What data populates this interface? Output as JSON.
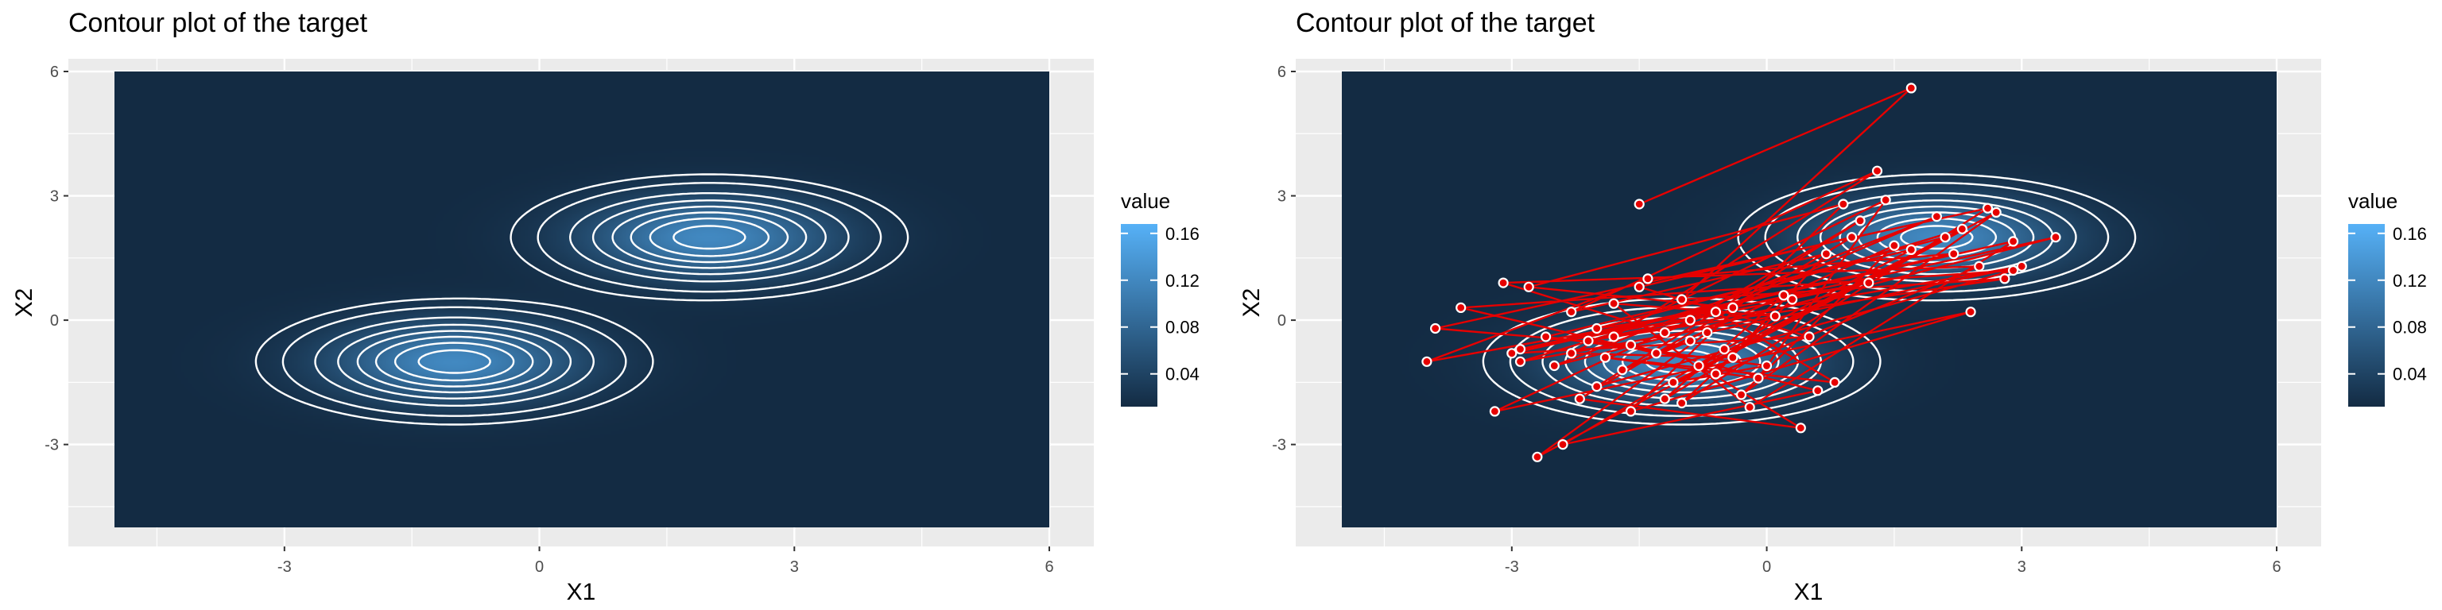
{
  "chart_data": [
    {
      "type": "heatmap",
      "title": "Contour plot of the target",
      "xlabel": "X1",
      "ylabel": "X2",
      "xlim": [
        -5,
        6
      ],
      "ylim": [
        -5,
        6
      ],
      "xticks": [
        "-3",
        "0",
        "3",
        "6"
      ],
      "yticks": [
        "-3",
        "0",
        "3",
        "6"
      ],
      "xtick_values": [
        -3,
        0,
        3,
        6
      ],
      "ytick_values": [
        -3,
        0,
        3,
        6
      ],
      "legend": {
        "title": "value",
        "labels": [
          "0.16",
          "0.12",
          "0.08",
          "0.04"
        ],
        "values": [
          0.16,
          0.12,
          0.08,
          0.04
        ],
        "placement": "right"
      },
      "density": {
        "components": [
          {
            "weight": 0.5,
            "mean": [
              -1,
              -1
            ],
            "sd": [
              1.0,
              0.65
            ]
          },
          {
            "weight": 0.5,
            "mean": [
              2,
              2
            ],
            "sd": [
              1.0,
              0.65
            ]
          }
        ]
      },
      "contour_levels": [
        0.008,
        0.016,
        0.032,
        0.048,
        0.064,
        0.08,
        0.096,
        0.112,
        0.128,
        0.144,
        0.16,
        0.174
      ],
      "colors": {
        "low": "#132b43",
        "high": "#56b1f7",
        "contour": "#ffffff",
        "panel": "#ebebeb",
        "grid": "#ffffff"
      }
    },
    {
      "type": "heatmap",
      "title": "Contour plot of the target",
      "xlabel": "X1",
      "ylabel": "X2",
      "xlim": [
        -5,
        6
      ],
      "ylim": [
        -5,
        6
      ],
      "xticks": [
        "-3",
        "0",
        "3",
        "6"
      ],
      "yticks": [
        "-3",
        "0",
        "3",
        "6"
      ],
      "xtick_values": [
        -3,
        0,
        3,
        6
      ],
      "ytick_values": [
        -3,
        0,
        3,
        6
      ],
      "legend": {
        "title": "value",
        "labels": [
          "0.16",
          "0.12",
          "0.08",
          "0.04"
        ],
        "values": [
          0.16,
          0.12,
          0.08,
          0.04
        ],
        "placement": "right"
      },
      "density": {
        "components": [
          {
            "weight": 0.5,
            "mean": [
              -1,
              -1
            ],
            "sd": [
              1.0,
              0.65
            ]
          },
          {
            "weight": 0.5,
            "mean": [
              2,
              2
            ],
            "sd": [
              1.0,
              0.65
            ]
          }
        ]
      },
      "contour_levels": [
        0.008,
        0.016,
        0.032,
        0.048,
        0.064,
        0.08,
        0.096,
        0.112,
        0.128,
        0.144,
        0.16,
        0.174
      ],
      "colors": {
        "low": "#132b43",
        "high": "#56b1f7",
        "contour": "#ffffff",
        "panel": "#ebebeb",
        "grid": "#ffffff",
        "path": "#e60000",
        "point_fill": "#e60000",
        "point_stroke": "#ffffff"
      },
      "path": [
        [
          -1.5,
          2.8
        ],
        [
          1.7,
          5.6
        ],
        [
          -1.0,
          0.5
        ],
        [
          2.8,
          1.0
        ],
        [
          -1.8,
          -0.4
        ],
        [
          1.3,
          3.6
        ],
        [
          -2.3,
          0.2
        ],
        [
          0.7,
          1.6
        ],
        [
          -0.6,
          -1.3
        ],
        [
          2.5,
          1.3
        ],
        [
          -3.1,
          0.9
        ],
        [
          -1.2,
          -0.3
        ],
        [
          2.0,
          2.5
        ],
        [
          -2.5,
          -1.1
        ],
        [
          3.4,
          2.0
        ],
        [
          -0.4,
          0.3
        ],
        [
          -2.8,
          0.8
        ],
        [
          0.9,
          2.8
        ],
        [
          -1.6,
          -2.2
        ],
        [
          2.4,
          0.2
        ],
        [
          -3.2,
          -2.2
        ],
        [
          -0.9,
          0.0
        ],
        [
          1.1,
          2.4
        ],
        [
          -2.0,
          -1.6
        ],
        [
          2.9,
          1.2
        ],
        [
          -3.6,
          0.3
        ],
        [
          -1.3,
          -0.8
        ],
        [
          1.5,
          1.8
        ],
        [
          -0.3,
          -1.8
        ],
        [
          2.7,
          2.6
        ],
        [
          -2.7,
          -3.3
        ],
        [
          -0.7,
          -0.3
        ],
        [
          3.0,
          1.3
        ],
        [
          -2.1,
          -0.5
        ],
        [
          1.2,
          0.9
        ],
        [
          -4.0,
          -1.0
        ],
        [
          -1.4,
          1.0
        ],
        [
          2.2,
          1.6
        ],
        [
          -2.9,
          -0.7
        ],
        [
          0.3,
          0.5
        ],
        [
          -1.0,
          -2.0
        ],
        [
          2.6,
          2.7
        ],
        [
          -3.9,
          -0.2
        ],
        [
          -1.6,
          -0.6
        ],
        [
          0.6,
          -1.7
        ],
        [
          -2.4,
          -3.0
        ],
        [
          -0.5,
          -0.7
        ],
        [
          1.7,
          1.7
        ],
        [
          -2.6,
          -0.4
        ],
        [
          0.0,
          -1.1
        ],
        [
          -1.1,
          -1.5
        ],
        [
          2.3,
          2.2
        ],
        [
          -2.9,
          -1.0
        ],
        [
          0.1,
          0.1
        ],
        [
          -1.8,
          0.4
        ],
        [
          -0.2,
          -2.1
        ],
        [
          2.9,
          1.9
        ],
        [
          -3.0,
          -0.8
        ],
        [
          0.5,
          -0.4
        ],
        [
          -1.5,
          0.8
        ],
        [
          1.0,
          2.0
        ],
        [
          -2.2,
          -1.9
        ],
        [
          0.4,
          -2.6
        ],
        [
          -0.8,
          -1.1
        ],
        [
          2.1,
          2.0
        ],
        [
          -2.0,
          -0.2
        ],
        [
          -0.6,
          0.2
        ],
        [
          0.8,
          -1.5
        ],
        [
          -1.9,
          -0.9
        ],
        [
          -0.1,
          -1.4
        ],
        [
          1.4,
          2.9
        ],
        [
          -2.3,
          -0.8
        ],
        [
          -0.4,
          -0.9
        ],
        [
          -1.2,
          -1.9
        ],
        [
          0.2,
          0.6
        ],
        [
          -1.7,
          -1.2
        ],
        [
          -0.9,
          -0.5
        ]
      ]
    }
  ]
}
